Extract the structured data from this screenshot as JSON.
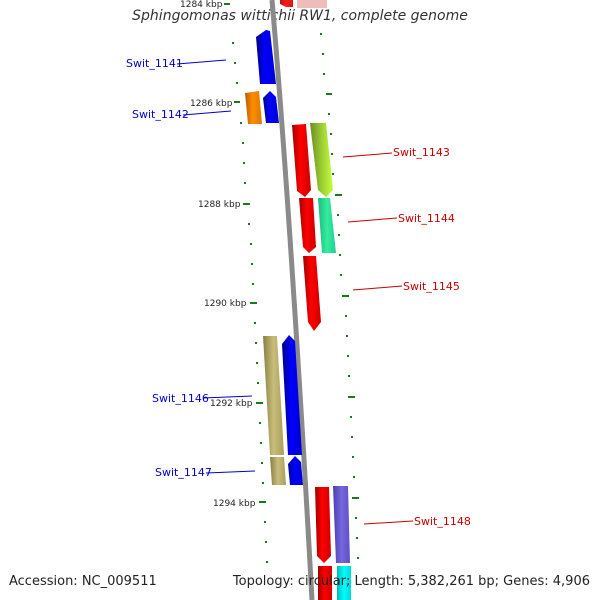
{
  "title": "Sphingomonas wittichii RW1, complete genome",
  "accession": "Accession: NC_009511",
  "summary": "Topology: circular; Length: 5,382,261 bp; Genes: 4,906",
  "scale_labels": [
    "1284 kbp",
    "1286 kbp",
    "1288 kbp",
    "1290 kbp",
    "1292 kbp",
    "1294 kbp"
  ],
  "genes": [
    {
      "id": "Swit_1141",
      "strand": "minus",
      "color": "#0000ff"
    },
    {
      "id": "Swit_1142",
      "strand": "minus",
      "color": "#0000ff"
    },
    {
      "id": "Swit_1143",
      "strand": "plus",
      "color": "#ff0000"
    },
    {
      "id": "Swit_1144",
      "strand": "plus",
      "color": "#ff0000"
    },
    {
      "id": "Swit_1145",
      "strand": "plus",
      "color": "#ff0000"
    },
    {
      "id": "Swit_1146",
      "strand": "minus",
      "color": "#0000ff"
    },
    {
      "id": "Swit_1147",
      "strand": "minus",
      "color": "#0000ff"
    },
    {
      "id": "Swit_1148",
      "strand": "plus",
      "color": "#ff0000"
    }
  ],
  "colors": {
    "backbone": "#808080",
    "tick": "#1a7a1a",
    "minus_label": "#0000cc",
    "plus_label": "#cc0000",
    "orange_feature": "#ff8c00",
    "olive_feature": "#9acd32",
    "teal_feature": "#33ee99",
    "khaki_feature": "#b8ad6a",
    "purple_feature": "#7766dd",
    "cyan_feature": "#00ffff"
  }
}
